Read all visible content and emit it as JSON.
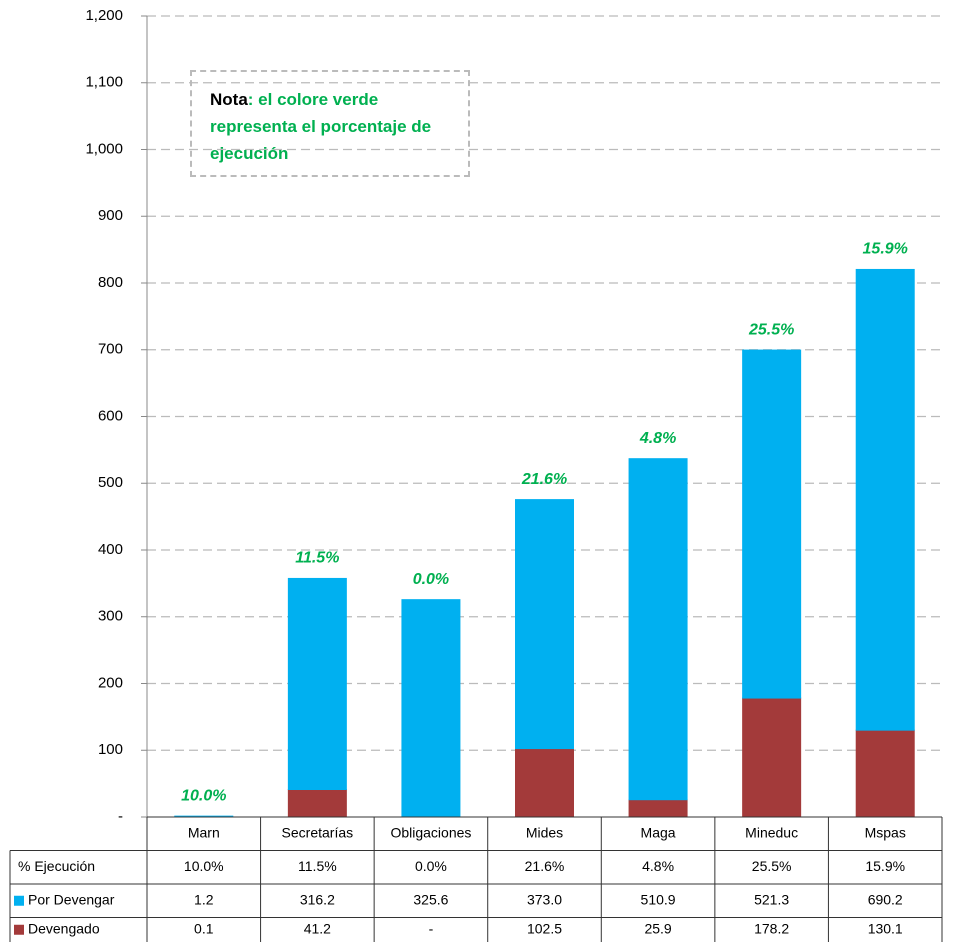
{
  "chart_data": {
    "type": "stacked_bar",
    "categories": [
      "Marn",
      "Secretarías",
      "Obligaciones",
      "Mides",
      "Maga",
      "Mineduc",
      "Mspas"
    ],
    "series": [
      {
        "name": "Devengado",
        "color": "#a33a3a",
        "values": [
          0.1,
          41.2,
          0,
          102.5,
          25.9,
          178.2,
          130.1
        ],
        "value_labels": [
          "0.1",
          "41.2",
          "-",
          "102.5",
          "25.9",
          "178.2",
          "130.1"
        ]
      },
      {
        "name": "Por Devengar",
        "color": "#00b0f0",
        "values": [
          1.2,
          316.2,
          325.6,
          373.0,
          510.9,
          521.3,
          690.2
        ],
        "value_labels": [
          "1.2",
          "316.2",
          "325.6",
          "373.0",
          "510.9",
          "521.3",
          "690.2"
        ]
      }
    ],
    "ejecucion": {
      "name": "% Ejecución",
      "color": "#00b050",
      "values": [
        10.0,
        11.5,
        0.0,
        21.6,
        4.8,
        25.5,
        15.9
      ],
      "value_labels": [
        "10.0%",
        "11.5%",
        "0.0%",
        "21.6%",
        "4.8%",
        "25.5%",
        "15.9%"
      ]
    },
    "ylim": [
      0,
      1200
    ],
    "yticks": [
      {
        "value": 0,
        "label": "-"
      },
      100,
      200,
      300,
      400,
      500,
      600,
      700,
      800,
      900,
      {
        "value": 1000,
        "label": "1,000"
      },
      {
        "value": 1100,
        "label": "1,100"
      },
      {
        "value": 1200,
        "label": "1,200"
      }
    ],
    "grid": true,
    "note": {
      "label": "Nota",
      "text": ": el colore verde representa el porcentaje de ejecución"
    }
  }
}
